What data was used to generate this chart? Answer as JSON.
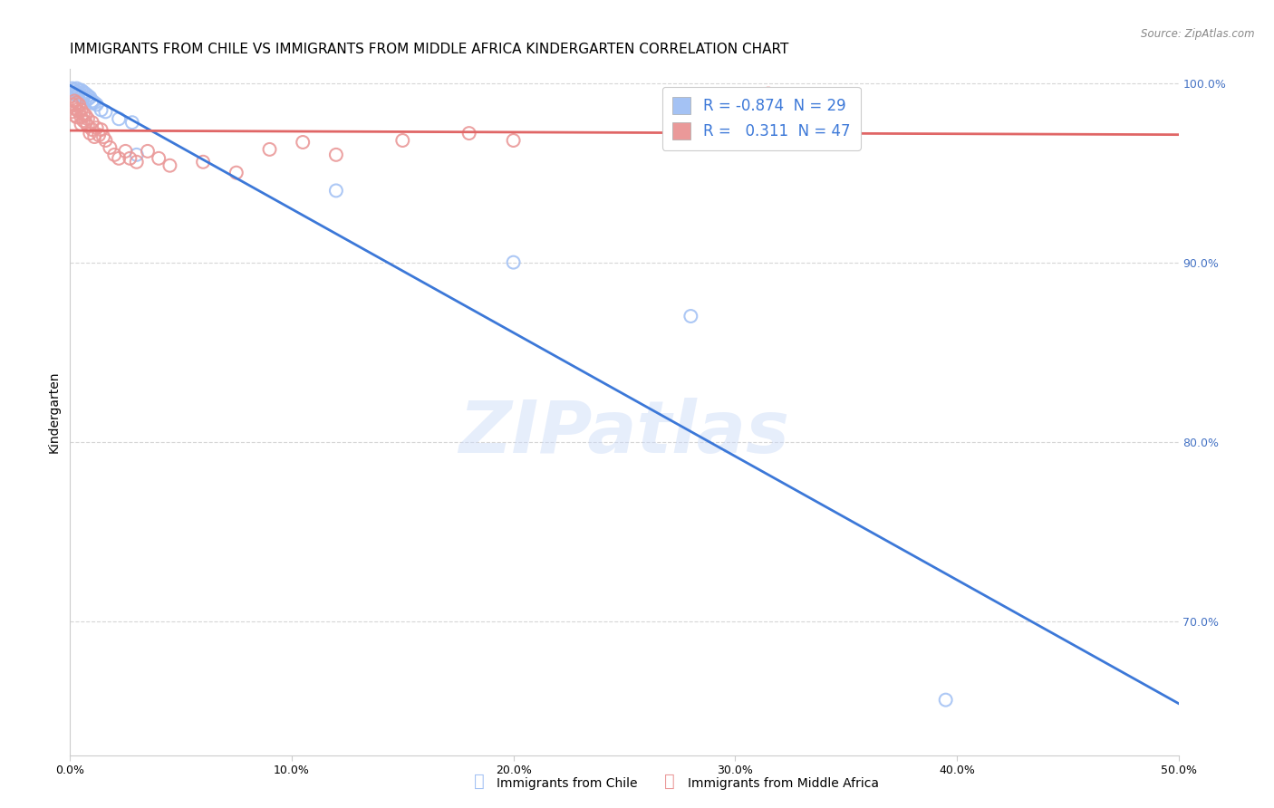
{
  "title": "IMMIGRANTS FROM CHILE VS IMMIGRANTS FROM MIDDLE AFRICA KINDERGARTEN CORRELATION CHART",
  "source": "Source: ZipAtlas.com",
  "ylabel": "Kindergarten",
  "xlim": [
    0.0,
    0.5
  ],
  "ylim": [
    0.625,
    1.008
  ],
  "xtick_labels": [
    "0.0%",
    "10.0%",
    "20.0%",
    "30.0%",
    "40.0%",
    "50.0%"
  ],
  "xtick_values": [
    0.0,
    0.1,
    0.2,
    0.3,
    0.4,
    0.5
  ],
  "ytick_labels": [
    "100.0%",
    "90.0%",
    "80.0%",
    "70.0%"
  ],
  "ytick_values": [
    1.0,
    0.9,
    0.8,
    0.7
  ],
  "chile_color": "#a4c2f4",
  "middle_africa_color": "#ea9999",
  "chile_line_color": "#3c78d8",
  "middle_africa_line_color": "#e06666",
  "chile_R": -0.874,
  "chile_N": 29,
  "middle_africa_R": 0.311,
  "middle_africa_N": 47,
  "watermark": "ZIPatlas",
  "legend_label_chile": "Immigrants from Chile",
  "legend_label_middle_africa": "Immigrants from Middle Africa",
  "chile_scatter_x": [
    0.001,
    0.002,
    0.002,
    0.003,
    0.003,
    0.003,
    0.004,
    0.004,
    0.005,
    0.005,
    0.006,
    0.006,
    0.007,
    0.008,
    0.008,
    0.009,
    0.01,
    0.01,
    0.011,
    0.012,
    0.014,
    0.016,
    0.022,
    0.028,
    0.03,
    0.12,
    0.2,
    0.28,
    0.395
  ],
  "chile_scatter_y": [
    0.997,
    0.996,
    0.994,
    0.997,
    0.995,
    0.993,
    0.996,
    0.994,
    0.996,
    0.993,
    0.995,
    0.992,
    0.994,
    0.993,
    0.991,
    0.992,
    0.99,
    0.989,
    0.989,
    0.988,
    0.985,
    0.984,
    0.98,
    0.978,
    0.96,
    0.94,
    0.9,
    0.87,
    0.656
  ],
  "middle_africa_scatter_x": [
    0.001,
    0.001,
    0.002,
    0.002,
    0.002,
    0.003,
    0.003,
    0.003,
    0.004,
    0.004,
    0.005,
    0.005,
    0.005,
    0.006,
    0.006,
    0.007,
    0.007,
    0.008,
    0.008,
    0.009,
    0.01,
    0.01,
    0.011,
    0.012,
    0.013,
    0.014,
    0.015,
    0.016,
    0.018,
    0.02,
    0.022,
    0.025,
    0.027,
    0.03,
    0.035,
    0.04,
    0.045,
    0.06,
    0.075,
    0.09,
    0.105,
    0.12,
    0.15,
    0.18,
    0.2,
    0.295,
    0.315
  ],
  "middle_africa_scatter_y": [
    0.988,
    0.984,
    0.99,
    0.986,
    0.982,
    0.989,
    0.985,
    0.981,
    0.988,
    0.984,
    0.985,
    0.981,
    0.977,
    0.983,
    0.979,
    0.982,
    0.978,
    0.98,
    0.976,
    0.972,
    0.978,
    0.974,
    0.97,
    0.975,
    0.971,
    0.974,
    0.97,
    0.968,
    0.964,
    0.96,
    0.958,
    0.962,
    0.958,
    0.956,
    0.962,
    0.958,
    0.954,
    0.956,
    0.95,
    0.963,
    0.967,
    0.96,
    0.968,
    0.972,
    0.968,
    0.986,
    0.994
  ],
  "background_color": "#ffffff",
  "grid_color": "#cccccc",
  "title_fontsize": 11,
  "axis_label_fontsize": 10,
  "tick_label_fontsize": 9,
  "right_tick_color": "#4472c4"
}
